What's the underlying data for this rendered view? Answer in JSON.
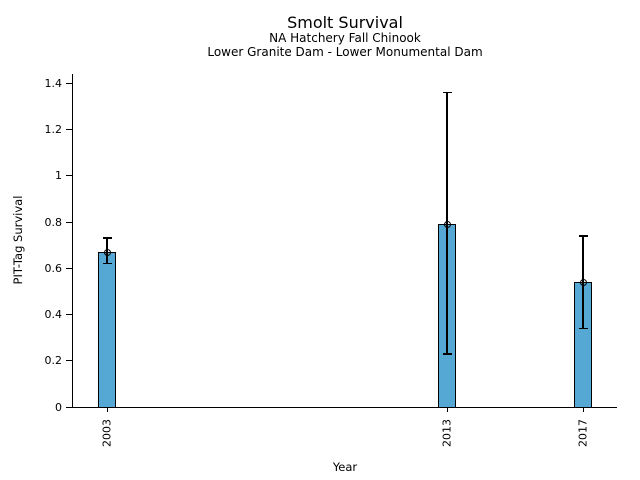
{
  "chart_data": {
    "type": "bar",
    "title": "Smolt Survival",
    "subtitle1": "NA Hatchery Fall Chinook",
    "subtitle2": "Lower Granite Dam - Lower Monumental Dam",
    "xlabel": "Year",
    "ylabel": "PIT-Tag Survival",
    "categories": [
      2003,
      2013,
      2017
    ],
    "values": [
      0.67,
      0.79,
      0.54
    ],
    "error_low": [
      0.62,
      0.23,
      0.34
    ],
    "error_high": [
      0.73,
      1.36,
      0.74
    ],
    "xlim": [
      2002,
      2018
    ],
    "ylim": [
      0,
      1.44
    ],
    "yticks": [
      0,
      0.2,
      0.4,
      0.6,
      0.8,
      1,
      1.2,
      1.4
    ],
    "ytick_labels": [
      "0",
      "0.2",
      "0.4",
      "0.6",
      "0.8",
      "1",
      "1.2",
      "1.4"
    ],
    "xtick_labels": [
      "2003",
      "2013",
      "2017"
    ],
    "grid": false,
    "legend": "none",
    "bar_color": "#56a8d4",
    "bar_edge_color": "#000000",
    "error_color": "#000000",
    "background_color": "#ffffff"
  }
}
